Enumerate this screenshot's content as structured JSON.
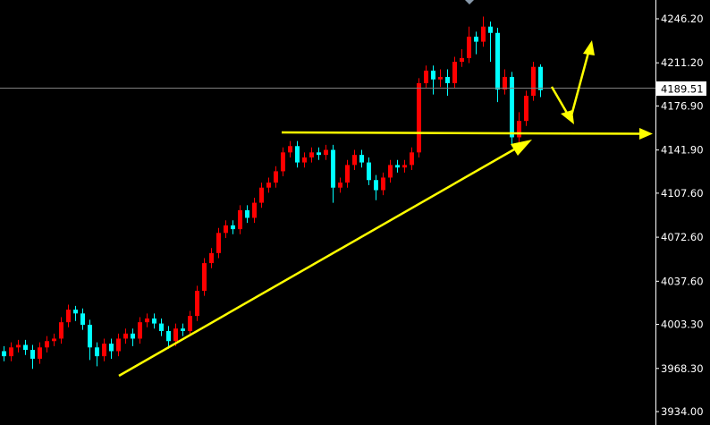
{
  "chart_data": {
    "type": "candlestick",
    "title": "",
    "xlabel": "",
    "ylabel": "",
    "ylim": [
      3934.0,
      4246.2
    ],
    "grid": false,
    "y_ticks": [
      "4246.20",
      "4211.20",
      "4176.90",
      "4141.90",
      "4107.60",
      "4072.60",
      "4037.60",
      "4003.30",
      "3968.30",
      "3934.00"
    ],
    "current_price": "4189.51",
    "colors": {
      "background": "#000000",
      "bullish": "#ff0000",
      "bearish": "#00ffff",
      "drawings": "#ffff00",
      "axis": "#ffffff",
      "price_line": "#808080"
    },
    "open": [
      3982,
      3978,
      3985,
      3987,
      3983,
      3976,
      3985,
      3990,
      3992,
      4005,
      4015,
      4012,
      4003,
      3985,
      3978,
      3988,
      3982,
      3992,
      3996,
      3992,
      4005,
      4008,
      4004,
      3998,
      3990,
      4000,
      3998,
      4010,
      4030,
      4052,
      4060,
      4076,
      4082,
      4079,
      4094,
      4088,
      4100,
      4112,
      4116,
      4125,
      4140,
      4145,
      4132,
      4136,
      4140,
      4138,
      4142,
      4112,
      4116,
      4130,
      4138,
      4132,
      4118,
      4110,
      4120,
      4130,
      4128,
      4130,
      4140,
      4195,
      4205,
      4198,
      4200,
      4195,
      4212,
      4215,
      4232,
      4228,
      4240,
      4235,
      4190,
      4200,
      4152,
      4165,
      4185,
      4208
    ],
    "high": [
      3986,
      3989,
      3991,
      3991,
      3987,
      3989,
      3994,
      3996,
      4009,
      4019,
      4018,
      4016,
      4007,
      3989,
      3992,
      3992,
      3996,
      4000,
      4000,
      4009,
      4012,
      4012,
      4008,
      4002,
      4004,
      4004,
      4014,
      4034,
      4056,
      4064,
      4080,
      4086,
      4086,
      4098,
      4098,
      4104,
      4116,
      4120,
      4129,
      4144,
      4149,
      4149,
      4140,
      4144,
      4144,
      4146,
      4146,
      4120,
      4134,
      4142,
      4142,
      4136,
      4122,
      4124,
      4134,
      4134,
      4134,
      4144,
      4199,
      4209,
      4209,
      4206,
      4206,
      4216,
      4222,
      4240,
      4236,
      4248,
      4244,
      4239,
      4206,
      4204,
      4172,
      4189,
      4212,
      4210
    ],
    "low": [
      3974,
      3974,
      3981,
      3979,
      3968,
      3972,
      3981,
      3986,
      3988,
      4001,
      4006,
      3999,
      3975,
      3970,
      3974,
      3976,
      3978,
      3988,
      3986,
      3988,
      4001,
      4000,
      3994,
      3984,
      3986,
      3994,
      3994,
      4006,
      4026,
      4048,
      4056,
      4072,
      4075,
      4075,
      4084,
      4084,
      4096,
      4108,
      4112,
      4121,
      4136,
      4128,
      4128,
      4132,
      4134,
      4134,
      4100,
      4108,
      4112,
      4126,
      4128,
      4114,
      4102,
      4106,
      4116,
      4124,
      4124,
      4126,
      4136,
      4191,
      4186,
      4192,
      4185,
      4191,
      4208,
      4211,
      4218,
      4224,
      4212,
      4180,
      4186,
      4145,
      4148,
      4161,
      4181,
      4184
    ],
    "close": [
      3978,
      3985,
      3987,
      3983,
      3976,
      3985,
      3990,
      3992,
      4005,
      4015,
      4012,
      4003,
      3985,
      3978,
      3988,
      3982,
      3992,
      3996,
      3992,
      4005,
      4008,
      4004,
      3998,
      3990,
      4000,
      3998,
      4010,
      4030,
      4052,
      4060,
      4076,
      4082,
      4079,
      4094,
      4088,
      4100,
      4112,
      4116,
      4125,
      4140,
      4145,
      4132,
      4136,
      4140,
      4138,
      4142,
      4112,
      4116,
      4130,
      4138,
      4132,
      4118,
      4110,
      4120,
      4130,
      4128,
      4130,
      4140,
      4195,
      4205,
      4198,
      4200,
      4195,
      4212,
      4215,
      4232,
      4228,
      4240,
      4235,
      4190,
      4200,
      4152,
      4165,
      4185,
      4208,
      4189.51
    ]
  }
}
